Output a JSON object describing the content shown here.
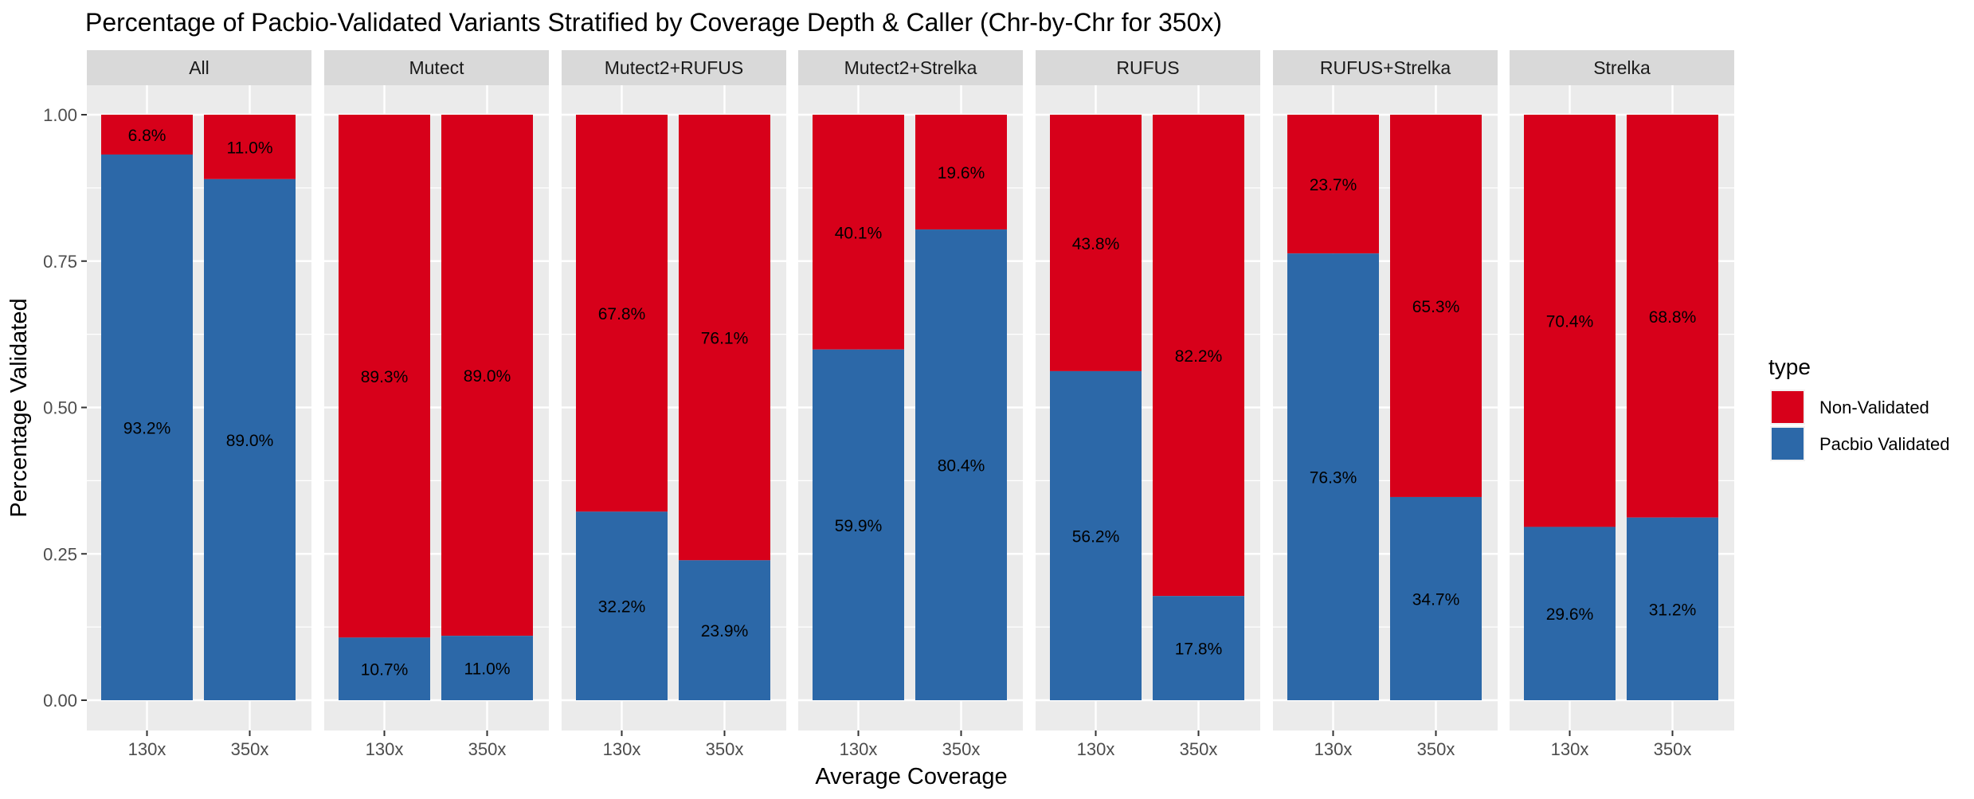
{
  "chart_data": {
    "type": "bar",
    "stacked": true,
    "faceted": true,
    "title": "Percentage of Pacbio-Validated Variants Stratified by Coverage Depth & Caller (Chr-by-Chr for 350x)",
    "xlabel": "Average Coverage",
    "ylabel": "Percentage Validated",
    "ylim": [
      0,
      1
    ],
    "yticks": [
      "0.00",
      "0.25",
      "0.50",
      "0.75",
      "1.00"
    ],
    "categories": [
      "130x",
      "350x"
    ],
    "legend": {
      "title": "type",
      "position": "right",
      "entries": [
        {
          "label": "Non-Validated",
          "color": "#D7001A"
        },
        {
          "label": "Pacbio Validated",
          "color": "#2C68A8"
        }
      ]
    },
    "grid": true,
    "panel_background": "#EBEBEB",
    "strip_background": "#D9D9D9",
    "facets": [
      {
        "name": "All",
        "bars": [
          {
            "x": "130x",
            "validated": 0.932,
            "validated_label": "93.2%",
            "non_validated_label": "6.8%"
          },
          {
            "x": "350x",
            "validated": 0.89,
            "validated_label": "89.0%",
            "non_validated_label": "11.0%"
          }
        ]
      },
      {
        "name": "Mutect",
        "bars": [
          {
            "x": "130x",
            "validated": 0.107,
            "validated_label": "10.7%",
            "non_validated_label": "89.3%"
          },
          {
            "x": "350x",
            "validated": 0.11,
            "validated_label": "11.0%",
            "non_validated_label": "89.0%"
          }
        ]
      },
      {
        "name": "Mutect2+RUFUS",
        "bars": [
          {
            "x": "130x",
            "validated": 0.322,
            "validated_label": "32.2%",
            "non_validated_label": "67.8%"
          },
          {
            "x": "350x",
            "validated": 0.239,
            "validated_label": "23.9%",
            "non_validated_label": "76.1%"
          }
        ]
      },
      {
        "name": "Mutect2+Strelka",
        "bars": [
          {
            "x": "130x",
            "validated": 0.599,
            "validated_label": "59.9%",
            "non_validated_label": "40.1%"
          },
          {
            "x": "350x",
            "validated": 0.804,
            "validated_label": "80.4%",
            "non_validated_label": "19.6%"
          }
        ]
      },
      {
        "name": "RUFUS",
        "bars": [
          {
            "x": "130x",
            "validated": 0.562,
            "validated_label": "56.2%",
            "non_validated_label": "43.8%"
          },
          {
            "x": "350x",
            "validated": 0.178,
            "validated_label": "17.8%",
            "non_validated_label": "82.2%"
          }
        ]
      },
      {
        "name": "RUFUS+Strelka",
        "bars": [
          {
            "x": "130x",
            "validated": 0.763,
            "validated_label": "76.3%",
            "non_validated_label": "23.7%"
          },
          {
            "x": "350x",
            "validated": 0.347,
            "validated_label": "34.7%",
            "non_validated_label": "65.3%"
          }
        ]
      },
      {
        "name": "Strelka",
        "bars": [
          {
            "x": "130x",
            "validated": 0.296,
            "validated_label": "29.6%",
            "non_validated_label": "70.4%"
          },
          {
            "x": "350x",
            "validated": 0.312,
            "validated_label": "31.2%",
            "non_validated_label": "68.8%"
          }
        ]
      }
    ]
  }
}
